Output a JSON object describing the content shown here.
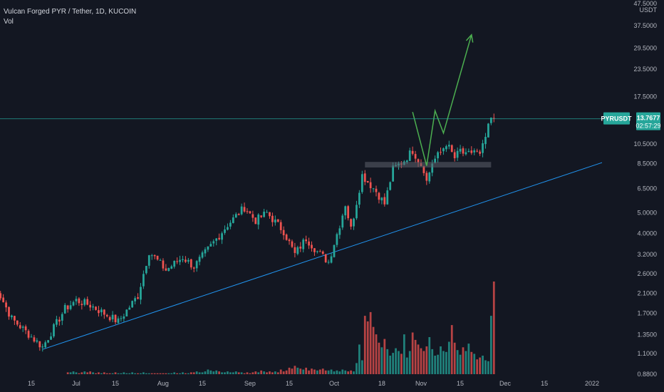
{
  "header": {
    "title": "Vulcan Forged PYR / Tether, 1D, KUCOIN",
    "volume_label": "Vol"
  },
  "price_axis": {
    "currency": "USDT",
    "ticks": [
      "47.5000",
      "37.5000",
      "29.5000",
      "23.5000",
      "17.5000",
      "10.5000",
      "8.5000",
      "6.5000",
      "5.0000",
      "4.0000",
      "3.2000",
      "2.6000",
      "2.1000",
      "1.7000",
      "1.3500",
      "1.1000",
      "0.8800"
    ],
    "tick_values": [
      47.5,
      37.5,
      29.5,
      23.5,
      17.5,
      10.5,
      8.5,
      6.5,
      5.0,
      4.0,
      3.2,
      2.6,
      2.1,
      1.7,
      1.35,
      1.1,
      0.88
    ]
  },
  "time_axis": {
    "labels": [
      "15",
      "Jul",
      "15",
      "Aug",
      "15",
      "Sep",
      "15",
      "Oct",
      "18",
      "Nov",
      "15",
      "Dec",
      "15",
      "2022"
    ],
    "label_dates": [
      "2021-06-15",
      "2021-07-01",
      "2021-07-15",
      "2021-08-01",
      "2021-08-15",
      "2021-09-01",
      "2021-09-15",
      "2021-10-01",
      "2021-10-18",
      "2021-11-01",
      "2021-11-15",
      "2021-12-01",
      "2021-12-15",
      "2022-01-01"
    ]
  },
  "last_price": {
    "symbol": "PYRUSDT",
    "price": "13.7677",
    "value": 13.7677,
    "countdown": "02:57:29"
  },
  "colors": {
    "up": "#26a69a",
    "down": "#ef5350",
    "trendline": "#2196f3",
    "arrow": "#4caf50",
    "background": "#131722",
    "badge": "#26a69a"
  },
  "chart_data": {
    "type": "candlestick",
    "title": "Vulcan Forged PYR / Tether, 1D, KUCOIN",
    "scale": "log",
    "series": [
      {
        "name": "Vol",
        "type": "bar",
        "values_relative": [
          0.02,
          0.02,
          0.03,
          0.02,
          0.01,
          0.02,
          0.03,
          0.02,
          0.03,
          0.02,
          0.01,
          0.02,
          0.01,
          0.02,
          0.01,
          0.01,
          0.01,
          0.02,
          0.01,
          0.01,
          0.02,
          0.01,
          0.01,
          0.02,
          0.01,
          0.01,
          0.01,
          0.02,
          0.01,
          0.01,
          0.01,
          0.01,
          0.01,
          0.01,
          0.01,
          0.01,
          0.01,
          0.01,
          0.02,
          0.01,
          0.01,
          0.02,
          0.01,
          0.01,
          0.02,
          0.02,
          0.03,
          0.02,
          0.02,
          0.03,
          0.05,
          0.04,
          0.03,
          0.04,
          0.03,
          0.02,
          0.02,
          0.03,
          0.02,
          0.02,
          0.03,
          0.02,
          0.02,
          0.01,
          0.02,
          0.01,
          0.02,
          0.03,
          0.02,
          0.04,
          0.03,
          0.02,
          0.03,
          0.02,
          0.03,
          0.02,
          0.05,
          0.03,
          0.04,
          0.07,
          0.06,
          0.09,
          0.07,
          0.06,
          0.05,
          0.07,
          0.04,
          0.06,
          0.05,
          0.04,
          0.05,
          0.06,
          0.04,
          0.04,
          0.05,
          0.03,
          0.04,
          0.03,
          0.05,
          0.04,
          0.03,
          0.04,
          0.03,
          0.12,
          0.32,
          0.15,
          0.63,
          0.57,
          0.67,
          0.51,
          0.43,
          0.34,
          0.29,
          0.38,
          0.27,
          0.2,
          0.23,
          0.28,
          0.25,
          0.22,
          0.43,
          0.18,
          0.25,
          0.45,
          0.37,
          0.32,
          0.28,
          0.25,
          0.3,
          0.4,
          0.27,
          0.2,
          0.21,
          0.3,
          0.25,
          0.24,
          0.35,
          0.53,
          0.34,
          0.26,
          0.21,
          0.29,
          0.25,
          0.33,
          0.24,
          0.22,
          0.16,
          0.18,
          0.2,
          0.15,
          0.14,
          0.63,
          1.0
        ]
      }
    ],
    "x_range": [
      "2021-06-01",
      "2022-01-10"
    ],
    "y_range": [
      0.85,
      47.5
    ],
    "trendline": {
      "start": {
        "x": "2021-06-19",
        "y": 1.15
      },
      "end": {
        "x": "2022-01-07",
        "y": 8.8
      }
    },
    "support_zone": {
      "x_start": "2021-10-12",
      "x_end": "2021-11-26",
      "y_low": 8.15,
      "y_high": 8.65
    },
    "projection_path": [
      {
        "x": "2021-10-29",
        "y": 14.8
      },
      {
        "x": "2021-11-03",
        "y": 8.3
      },
      {
        "x": "2021-11-06",
        "y": 15.0
      },
      {
        "x": "2021-11-09",
        "y": 11.8
      },
      {
        "x": "2021-11-19",
        "y": 34.0
      }
    ],
    "last_price_value": 13.7677,
    "grid": false,
    "legend": "top-left"
  }
}
